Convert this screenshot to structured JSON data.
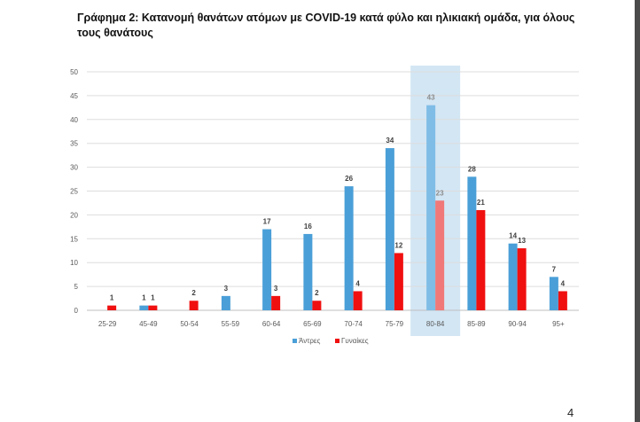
{
  "title": "Γράφημα 2: Κατανομή θανάτων ατόμων με COVID-19 κατά φύλο και ηλικιακή ομάδα, για όλους τους θανάτους",
  "page_number": "4",
  "colors": {
    "men": "#4a9fd8",
    "women": "#f01010",
    "men_highlight": "#7fbde6",
    "women_highlight": "#f07878",
    "highlight_band": "#d3e6f4",
    "grid": "#dddddd",
    "axis_text": "#595959",
    "label_text": "#404040"
  },
  "chart_data": {
    "type": "bar",
    "title": "Γράφημα 2: Κατανομή θανάτων ατόμων με COVID-19 κατά φύλο και ηλικιακή ομάδα, για όλους τους θανάτους",
    "xlabel": "",
    "ylabel": "",
    "ylim": [
      0,
      50
    ],
    "yticks": [
      0,
      5,
      10,
      15,
      20,
      25,
      30,
      35,
      40,
      45,
      50
    ],
    "grid": true,
    "legend_position": "bottom",
    "highlighted_category": "80-84",
    "categories": [
      "25-29",
      "45-49",
      "50-54",
      "55-59",
      "60-64",
      "65-69",
      "70-74",
      "75-79",
      "80-84",
      "85-89",
      "90-94",
      "95+"
    ],
    "series": [
      {
        "name": "Άντρες",
        "values": [
          null,
          1,
          null,
          3,
          17,
          16,
          26,
          34,
          43,
          28,
          14,
          7
        ]
      },
      {
        "name": "Γυναίκες",
        "values": [
          1,
          1,
          2,
          null,
          3,
          2,
          4,
          12,
          23,
          21,
          13,
          4
        ]
      }
    ]
  }
}
